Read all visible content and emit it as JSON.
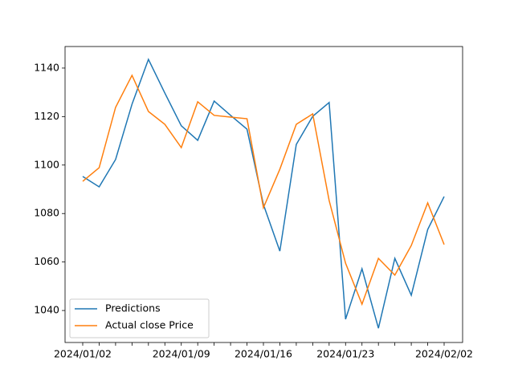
{
  "chart_data": {
    "type": "line",
    "categories": [
      "2024/01/02",
      null,
      null,
      null,
      null,
      null,
      "2024/01/09",
      null,
      null,
      null,
      null,
      "2024/01/16",
      null,
      null,
      null,
      null,
      "2024/01/23",
      null,
      null,
      null,
      null,
      null,
      "2024/02/02"
    ],
    "series": [
      {
        "name": "Predictions",
        "color": "#1f77b4",
        "values": [
          1095.3,
          1091.0,
          1102.3,
          1125.1,
          1143.6,
          1129.7,
          1116.2,
          1110.2,
          1126.4,
          1120.5,
          1114.8,
          1083.7,
          1064.5,
          1108.5,
          1120.1,
          1125.8,
          1036.4,
          1057.2,
          1032.7,
          1061.5,
          1046.3,
          1073.4,
          1087.0
        ]
      },
      {
        "name": "Actual close Price",
        "color": "#ff7f0e",
        "values": [
          1093.3,
          1098.9,
          1123.8,
          1137.0,
          1122.1,
          1116.8,
          1107.2,
          1126.1,
          1120.5,
          1119.8,
          1119.1,
          1082.4,
          1098.3,
          1116.8,
          1121.1,
          1085.4,
          1059.5,
          1042.6,
          1061.5,
          1054.6,
          1066.8,
          1084.4,
          1067.2
        ]
      }
    ],
    "ylim": [
      1026.8,
      1148.9
    ],
    "yticks": [
      1040,
      1060,
      1080,
      1100,
      1120,
      1140
    ],
    "legend": "lower left"
  }
}
